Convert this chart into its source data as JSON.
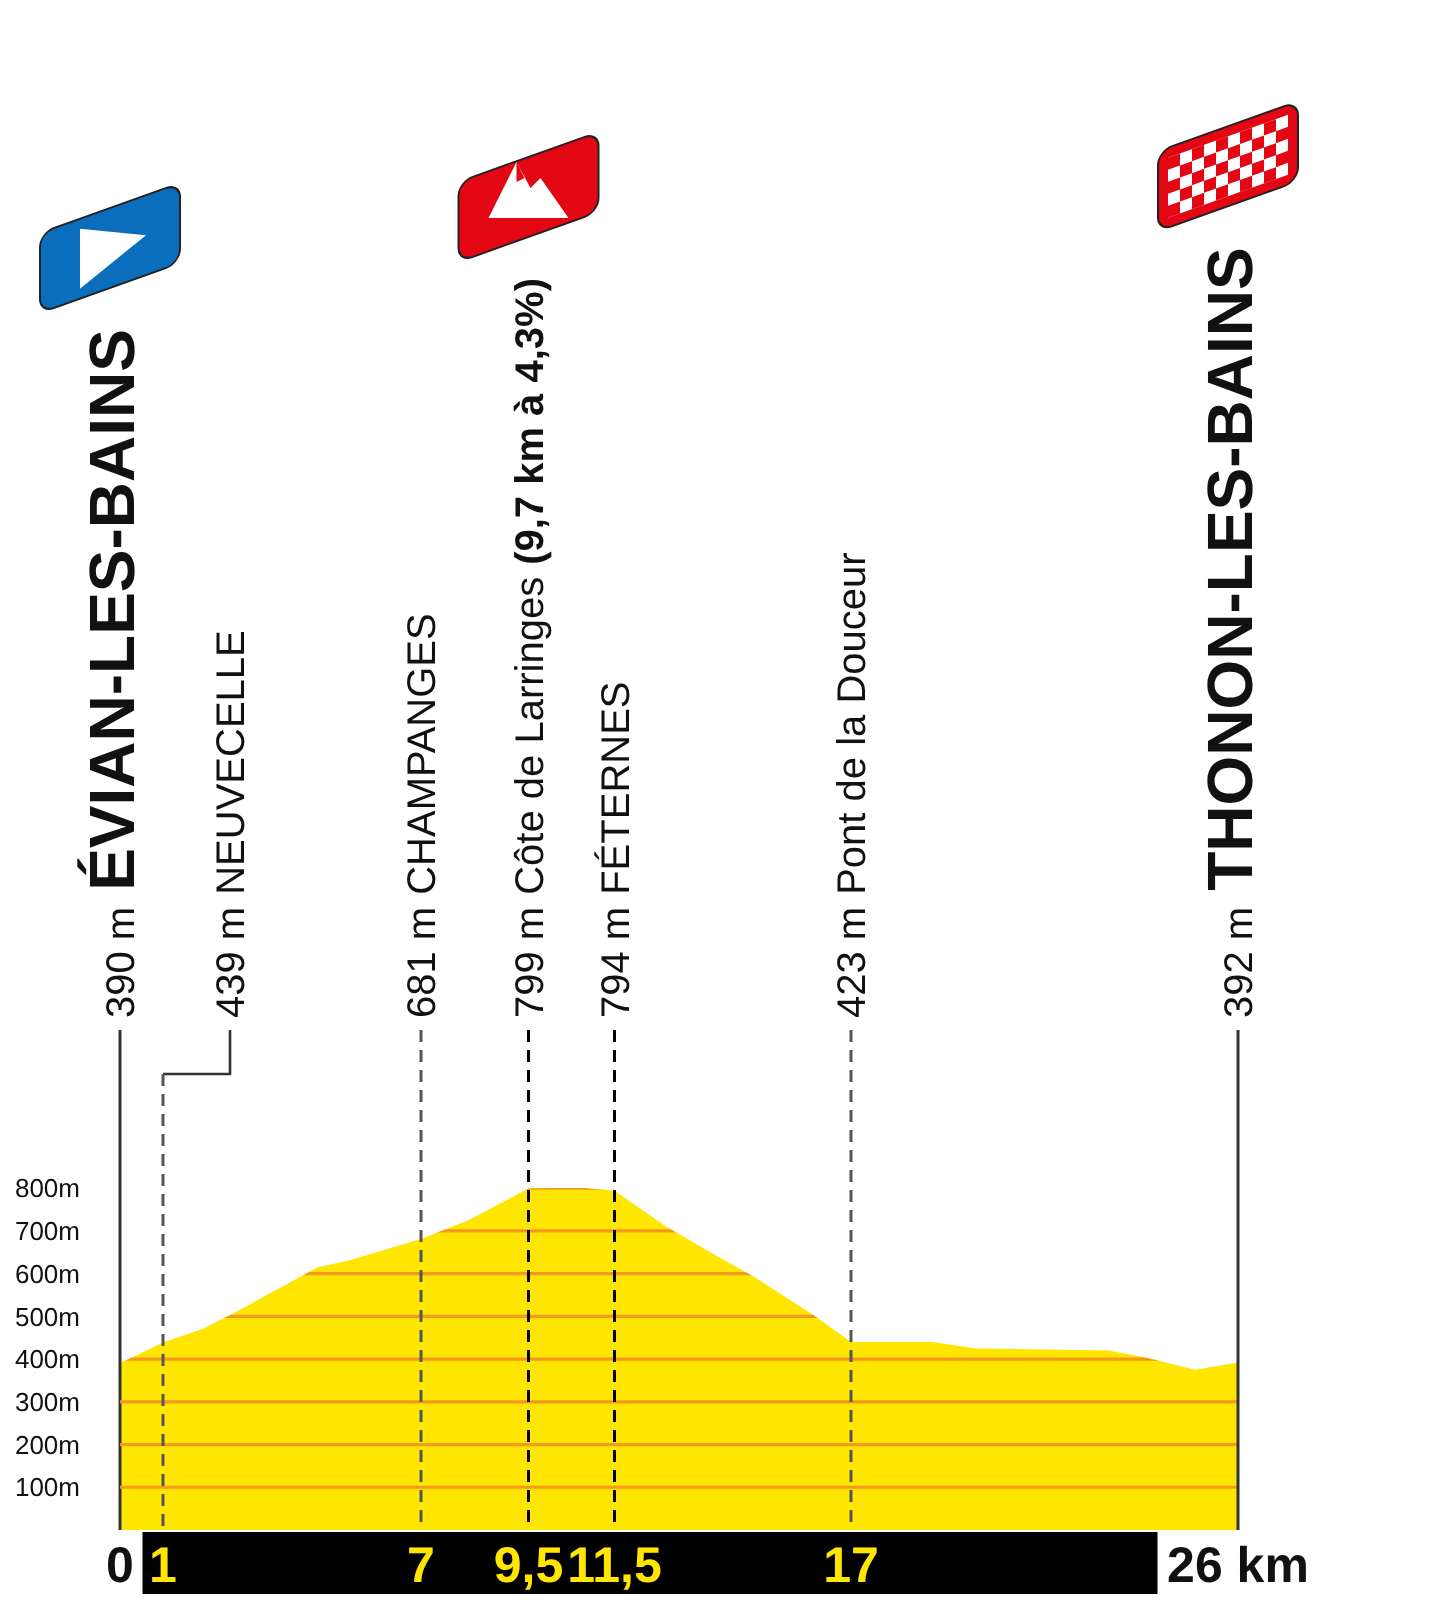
{
  "chart_data": {
    "type": "area",
    "x": [
      0,
      1,
      1.9,
      2.6,
      4.6,
      5.3,
      7,
      8.1,
      9.5,
      10,
      10.8,
      11.5,
      12.7,
      13.9,
      14.7,
      16.1,
      17,
      18.9,
      19.9,
      23,
      23.8,
      25,
      26
    ],
    "values": [
      390,
      439,
      470,
      505,
      615,
      630,
      681,
      725,
      799,
      800,
      800,
      794,
      710,
      640,
      595,
      505,
      440,
      440,
      425,
      420,
      405,
      375,
      392
    ],
    "color": "#ffe600",
    "xlim": [
      0,
      26
    ],
    "xticks": [
      0,
      1,
      7,
      {
        "value": 9.5,
        "label": "9,5"
      },
      {
        "value": 11.5,
        "label": "11,5"
      },
      17,
      {
        "value": 26,
        "label": "26 km"
      }
    ],
    "ylim": [
      0,
      1170
    ],
    "yticks": [
      {
        "value": 100,
        "label": "100m"
      },
      {
        "value": 200,
        "label": "200m"
      },
      {
        "value": 300,
        "label": "300m"
      },
      {
        "value": 400,
        "label": "400m"
      },
      {
        "value": 500,
        "label": "500m"
      },
      {
        "value": 600,
        "label": "600m"
      },
      {
        "value": 700,
        "label": "700m"
      },
      {
        "value": 800,
        "label": "800m"
      }
    ],
    "grid": "y",
    "annotations": [
      "390 m ÉVIAN-LES-BAINS"
    ],
    "ref_lines": [
      {
        "axis": "x",
        "value": 1,
        "label": "439 m NEUVECELLE",
        "line_style": "dashed",
        "color": "#555555"
      },
      {
        "axis": "x",
        "value": 7,
        "label": "681 m CHAMPANGES",
        "line_style": "dashed",
        "color": "#555555"
      },
      {
        "axis": "x",
        "value": 9.5,
        "label": "799 m Côte de Larringes (9,7 km à 4,3%)",
        "line_style": "dashed",
        "color": "#000000"
      },
      {
        "axis": "x",
        "value": 11.5,
        "label": "794 m FÉTERNES",
        "line_style": "dashed",
        "color": "#000000"
      },
      {
        "axis": "x",
        "value": 17,
        "label": "423 m Pont de la Douceur",
        "line_style": "dashed",
        "color": "#555555"
      },
      {
        "axis": "x",
        "value": 26,
        "label": "392 m THONON-LES-BAINS",
        "line_style": "solid",
        "color": "#333333"
      }
    ]
  }
}
